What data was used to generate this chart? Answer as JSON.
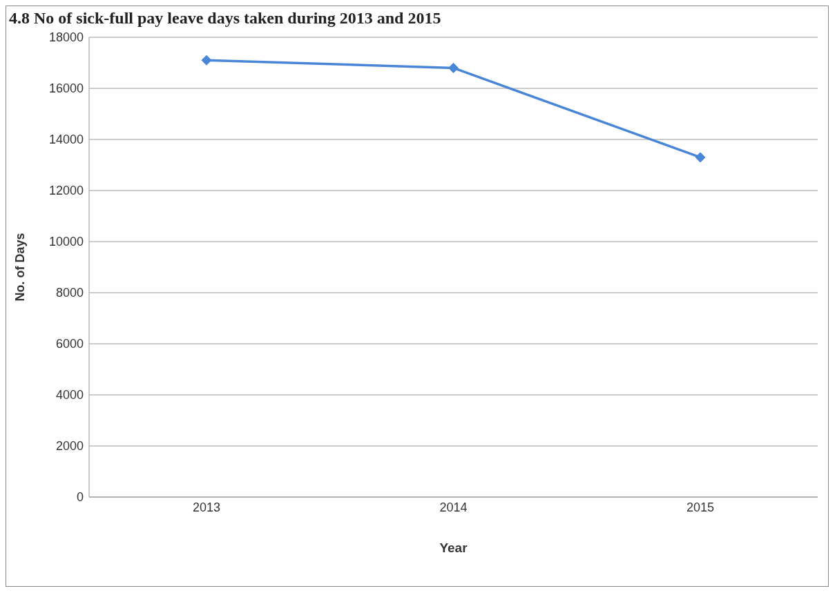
{
  "chart_data": {
    "type": "line",
    "title": "4.8 No of sick-full pay leave days taken during 2013 and 2015",
    "xlabel": "Year",
    "ylabel": "No. of Days",
    "categories": [
      "2013",
      "2014",
      "2015"
    ],
    "series": [
      {
        "color": "#4a86d8",
        "values": [
          17100,
          16800,
          13300
        ]
      }
    ],
    "ylim": [
      0,
      18000
    ],
    "yticks": [
      0,
      2000,
      4000,
      6000,
      8000,
      10000,
      12000,
      14000,
      16000,
      18000
    ],
    "grid": "y",
    "marker": "diamond",
    "line_style": "solid"
  }
}
